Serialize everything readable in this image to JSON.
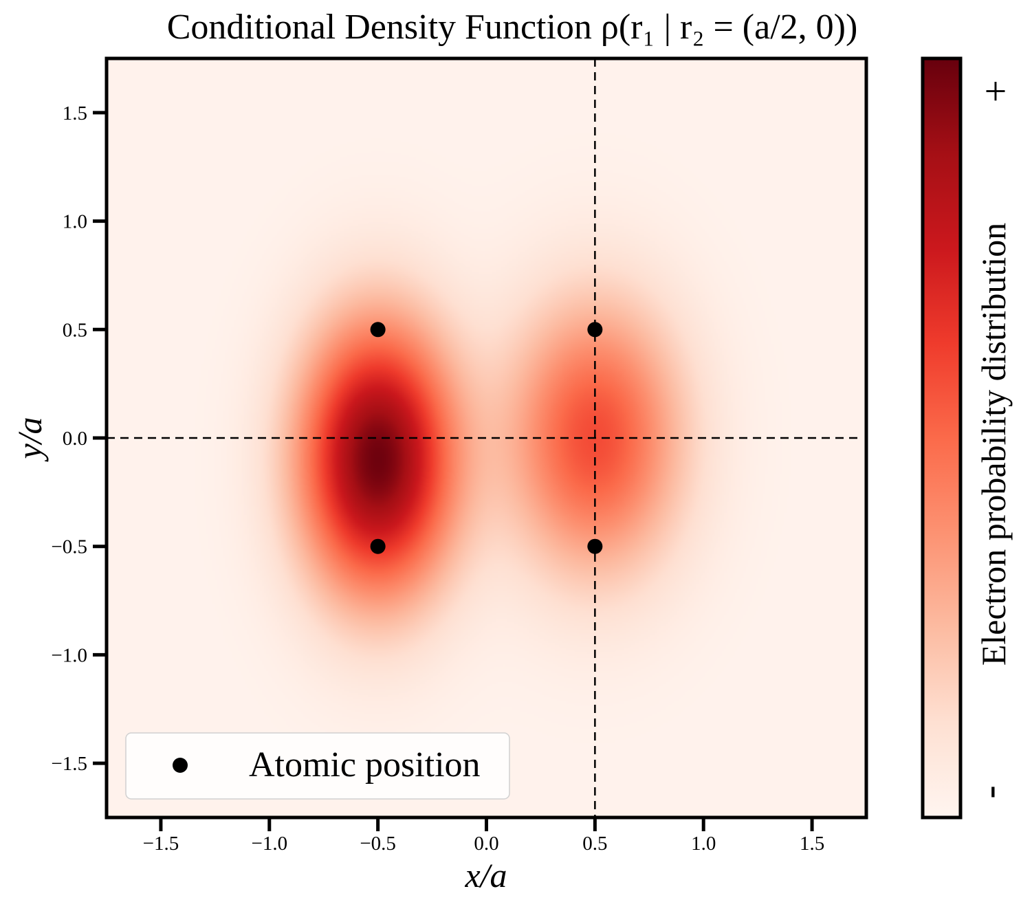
{
  "chart_data": {
    "type": "heatmap",
    "title": "Conditional Density Function ρ(r₁ | r₂ = (a/2, 0))",
    "xlabel": "x/a",
    "ylabel": "y/a",
    "xlim": [
      -1.75,
      1.75
    ],
    "ylim": [
      -1.75,
      1.75
    ],
    "xticks": [
      -1.5,
      -1.0,
      -0.5,
      0.0,
      0.5,
      1.0,
      1.5
    ],
    "yticks": [
      -1.5,
      -1.0,
      -0.5,
      0.0,
      0.5,
      1.0,
      1.5
    ],
    "xtick_labels": [
      "−1.5",
      "−1.0",
      "−0.5",
      "0.0",
      "0.5",
      "1.0",
      "1.5"
    ],
    "ytick_labels": [
      "−1.5",
      "−1.0",
      "−0.5",
      "0.0",
      "0.5",
      "1.0",
      "1.5"
    ],
    "colormap": "Reds",
    "colorbar": {
      "label": "Electron probability distribution",
      "top_label": "+",
      "bottom_label": "-"
    },
    "reference_lines": [
      {
        "orientation": "horizontal",
        "value": 0.0,
        "style": "dashed"
      },
      {
        "orientation": "vertical",
        "value": 0.5,
        "style": "dashed"
      }
    ],
    "density_peaks": [
      {
        "x": -0.5,
        "y": -0.1,
        "relative_intensity": 1.0
      },
      {
        "x": 0.5,
        "y": 0.0,
        "relative_intensity": 0.55
      }
    ],
    "scatter": {
      "name": "Atomic position",
      "points": [
        {
          "x": -0.5,
          "y": 0.5
        },
        {
          "x": 0.5,
          "y": 0.5
        },
        {
          "x": -0.5,
          "y": -0.5
        },
        {
          "x": 0.5,
          "y": -0.5
        }
      ]
    },
    "legend": {
      "entries": [
        "Atomic position"
      ],
      "location": "lower-left"
    }
  },
  "colors": {
    "marker": "#000000",
    "cmap_stops": [
      "#fff5f0",
      "#fee0d2",
      "#fcbba1",
      "#fc9272",
      "#fb6a4a",
      "#ef3b2c",
      "#cb181d",
      "#a50f15",
      "#67000d"
    ]
  }
}
